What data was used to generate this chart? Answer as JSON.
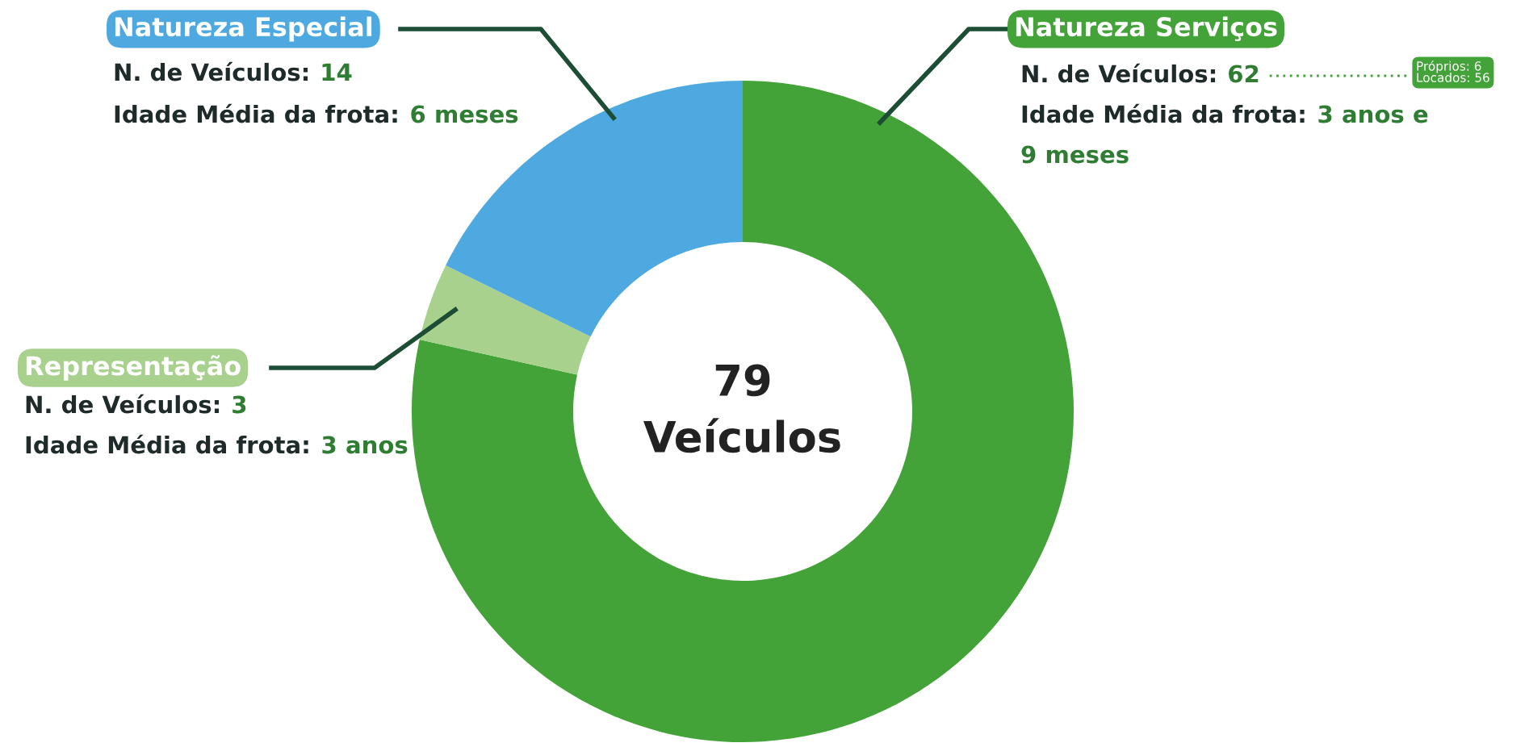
{
  "chart_data": {
    "type": "donut",
    "categories": [
      "Natureza Serviços",
      "Representação",
      "Natureza Especial"
    ],
    "values": [
      62,
      3,
      14
    ],
    "colors": [
      "#43a338",
      "#a9d18e",
      "#4ea9e0"
    ],
    "value_labels": [
      "62",
      "3",
      "14"
    ],
    "annotations": [
      "N. de Veículos:",
      "Idade Média da frota:",
      "3 anos e",
      "9 meses",
      "Próprios: 6\nLocados: 56",
      "N. de Veículos:",
      "Idade Média da frota:",
      "3 anos",
      "N. de Veículos:",
      "Idade Média da frota:",
      "6 meses",
      "79",
      "Veículos"
    ]
  }
}
